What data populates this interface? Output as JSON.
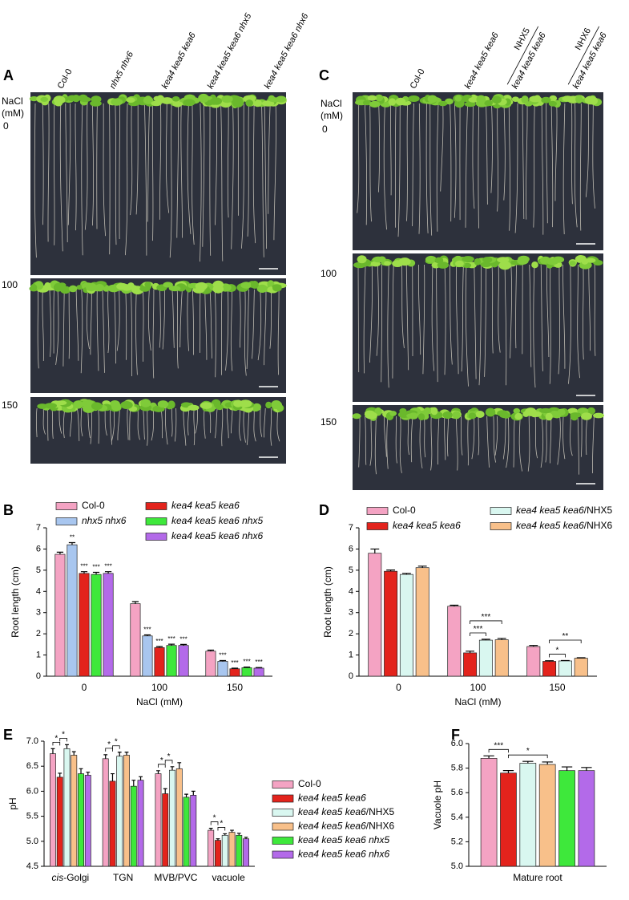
{
  "figure": {
    "panels": [
      {
        "letter": "A",
        "row_title": [
          "NaCl",
          "(mM)"
        ],
        "rows": [
          "0",
          "100",
          "150"
        ],
        "columns": [
          {
            "label": "Col-0"
          },
          {
            "label": "nhx5 nhx6"
          },
          {
            "label": "kea4 kea5 kea6"
          },
          {
            "label": "kea4 kea5 kea6 nhx5"
          },
          {
            "label": "kea4 kea5 kea6 nhx6"
          }
        ]
      },
      {
        "letter": "C",
        "row_title": [
          "NaCl",
          "(mM)"
        ],
        "rows": [
          "0",
          "100",
          "150"
        ],
        "columns": [
          {
            "label": "Col-0"
          },
          {
            "label": "kea4 kea5 kea6"
          },
          {
            "label": "kea4 kea5 kea6",
            "construct": "NHX5"
          },
          {
            "label": "kea4 kea5 kea6",
            "construct": "NHX6"
          }
        ]
      }
    ]
  },
  "chart_data": [
    {
      "type": "bar",
      "panel": "B",
      "ylabel": "Root length (cm)",
      "xlabel": "NaCl (mM)",
      "legend": "top",
      "categories": [
        "0",
        "100",
        "150"
      ],
      "ylim": [
        0,
        7
      ],
      "yticks": [
        0,
        1,
        2,
        3,
        4,
        5,
        6,
        7
      ],
      "series": [
        {
          "name": "Col-0",
          "color": "#f4a3c3",
          "values": [
            5.75,
            3.42,
            1.18
          ],
          "errors": [
            0.1,
            0.1,
            0.05
          ]
        },
        {
          "name": "nhx5 nhx6",
          "color": "#a8c6ef",
          "values": [
            6.2,
            1.9,
            0.7
          ],
          "errors": [
            0.1,
            0.05,
            0.04
          ],
          "sig": [
            "**",
            "***",
            "***"
          ]
        },
        {
          "name": "kea4 kea5 kea6",
          "color": "#e3231c",
          "values": [
            4.85,
            1.35,
            0.35
          ],
          "errors": [
            0.08,
            0.05,
            0.03
          ],
          "sig": [
            "***",
            "***",
            "***"
          ]
        },
        {
          "name": "kea4 kea5 kea6 nhx5",
          "color": "#3ee83b",
          "values": [
            4.8,
            1.45,
            0.4
          ],
          "errors": [
            0.1,
            0.06,
            0.03
          ],
          "sig": [
            "***",
            "***",
            "***"
          ]
        },
        {
          "name": "kea4 kea5 kea6 nhx6",
          "color": "#b36ae9",
          "values": [
            4.85,
            1.45,
            0.38
          ],
          "errors": [
            0.08,
            0.05,
            0.03
          ],
          "sig": [
            "***",
            "***",
            "***"
          ]
        }
      ]
    },
    {
      "type": "bar",
      "panel": "D",
      "ylabel": "Root length (cm)",
      "xlabel": "NaCl (mM)",
      "legend": "top",
      "categories": [
        "0",
        "100",
        "150"
      ],
      "ylim": [
        0,
        7
      ],
      "yticks": [
        0,
        1,
        2,
        3,
        4,
        5,
        6,
        7
      ],
      "series": [
        {
          "name": "Col-0",
          "color": "#f4a3c3",
          "values": [
            5.8,
            3.3,
            1.4
          ],
          "errors": [
            0.2,
            0.05,
            0.05
          ]
        },
        {
          "name": "kea4 kea5 kea6",
          "color": "#e3231c",
          "values": [
            4.95,
            1.1,
            0.7
          ],
          "errors": [
            0.06,
            0.08,
            0.03
          ]
        },
        {
          "name": "kea4 kea5 kea6/NHX5",
          "color": "#d9f7f0",
          "values": [
            4.8,
            1.7,
            0.72
          ],
          "errors": [
            0.05,
            0.04,
            0.02
          ]
        },
        {
          "name": "kea4 kea5 kea6/NHX6",
          "color": "#f8c08a",
          "values": [
            5.12,
            1.72,
            0.85
          ],
          "errors": [
            0.07,
            0.06,
            0.02
          ]
        }
      ],
      "brackets": [
        {
          "category": "100",
          "from": "kea4 kea5 kea6",
          "to": "kea4 kea5 kea6/NHX5",
          "label": "***"
        },
        {
          "category": "100",
          "from": "kea4 kea5 kea6",
          "to": "kea4 kea5 kea6/NHX6",
          "label": "***"
        },
        {
          "category": "150",
          "from": "kea4 kea5 kea6",
          "to": "kea4 kea5 kea6/NHX5",
          "label": "*"
        },
        {
          "category": "150",
          "from": "kea4 kea5 kea6",
          "to": "kea4 kea5 kea6/NHX6",
          "label": "**"
        }
      ]
    },
    {
      "type": "bar",
      "panel": "E",
      "ylabel": "pH",
      "legend": "right",
      "categories": [
        "cis-Golgi",
        "TGN",
        "MVB/PVC",
        "vacuole"
      ],
      "ylim": [
        4.5,
        7
      ],
      "yticks": [
        4.5,
        {
          "value": 5,
          "label": "5.0"
        },
        5.5,
        {
          "value": 6,
          "label": "6.0"
        },
        6.5,
        {
          "value": 7,
          "label": "7.0"
        }
      ],
      "series": [
        {
          "name": "Col-0",
          "color": "#f4a3c3",
          "values": [
            6.75,
            6.65,
            6.35,
            5.22
          ],
          "errors": [
            0.1,
            0.08,
            0.06,
            0.04
          ]
        },
        {
          "name": "kea4 kea5 kea6",
          "color": "#e3231c",
          "values": [
            6.28,
            6.2,
            5.95,
            5.02
          ],
          "errors": [
            0.08,
            0.15,
            0.1,
            0.03
          ]
        },
        {
          "name": "kea4 kea5 kea6/NHX5",
          "color": "#d9f7f0",
          "values": [
            6.85,
            6.7,
            6.42,
            5.12
          ],
          "errors": [
            0.08,
            0.08,
            0.07,
            0.03
          ]
        },
        {
          "name": "kea4 kea5 kea6/NHX6",
          "color": "#f8c08a",
          "values": [
            6.72,
            6.72,
            6.45,
            5.18
          ],
          "errors": [
            0.07,
            0.06,
            0.12,
            0.04
          ]
        },
        {
          "name": "kea4 kea5 kea6 nhx5",
          "color": "#3ee83b",
          "values": [
            6.35,
            6.1,
            5.88,
            5.12
          ],
          "errors": [
            0.1,
            0.12,
            0.06,
            0.04
          ]
        },
        {
          "name": "kea4 kea5 kea6 nhx6",
          "color": "#b36ae9",
          "values": [
            6.32,
            6.22,
            5.92,
            5.05
          ],
          "errors": [
            0.06,
            0.07,
            0.08,
            0.03
          ]
        }
      ],
      "brackets": [
        {
          "category": "cis-Golgi",
          "from": "Col-0",
          "to": "kea4 kea5 kea6",
          "label": "*"
        },
        {
          "category": "cis-Golgi",
          "from": "kea4 kea5 kea6",
          "to": "kea4 kea5 kea6/NHX5",
          "label": "*"
        },
        {
          "category": "TGN",
          "from": "Col-0",
          "to": "kea4 kea5 kea6",
          "label": "*"
        },
        {
          "category": "TGN",
          "from": "kea4 kea5 kea6",
          "to": "kea4 kea5 kea6/NHX5",
          "label": "*"
        },
        {
          "category": "MVB/PVC",
          "from": "Col-0",
          "to": "kea4 kea5 kea6",
          "label": "*"
        },
        {
          "category": "MVB/PVC",
          "from": "kea4 kea5 kea6",
          "to": "kea4 kea5 kea6/NHX5",
          "label": "*"
        },
        {
          "category": "vacuole",
          "from": "Col-0",
          "to": "kea4 kea5 kea6",
          "label": "*"
        },
        {
          "category": "vacuole",
          "from": "kea4 kea5 kea6",
          "to": "kea4 kea5 kea6/NHX5",
          "label": "*"
        }
      ]
    },
    {
      "type": "bar",
      "panel": "F",
      "ylabel": "Vacuole pH",
      "categories": [
        "Mature root"
      ],
      "ylim": [
        5,
        6
      ],
      "yticks": [
        {
          "value": 5,
          "label": "5.0"
        },
        5.2,
        5.4,
        5.6,
        5.8,
        {
          "value": 6,
          "label": "6.0"
        }
      ],
      "series": [
        {
          "color": "#f4a3c3",
          "values": [
            5.88
          ],
          "errors": [
            0.02
          ]
        },
        {
          "color": "#e3231c",
          "values": [
            5.76
          ],
          "errors": [
            0.02
          ]
        },
        {
          "color": "#d9f7f0",
          "values": [
            5.84
          ],
          "errors": [
            0.015
          ]
        },
        {
          "color": "#f8c08a",
          "values": [
            5.83
          ],
          "errors": [
            0.02
          ]
        },
        {
          "color": "#3ee83b",
          "values": [
            5.78
          ],
          "errors": [
            0.03
          ]
        },
        {
          "color": "#b36ae9",
          "values": [
            5.78
          ],
          "errors": [
            0.025
          ]
        }
      ],
      "bracket_series": [
        0,
        1,
        3
      ],
      "brackets": [
        {
          "category": "Mature root",
          "from": 0,
          "to": 1,
          "label": "***"
        },
        {
          "category": "Mature root",
          "from": 1,
          "to": 3,
          "label": "*"
        }
      ]
    }
  ]
}
